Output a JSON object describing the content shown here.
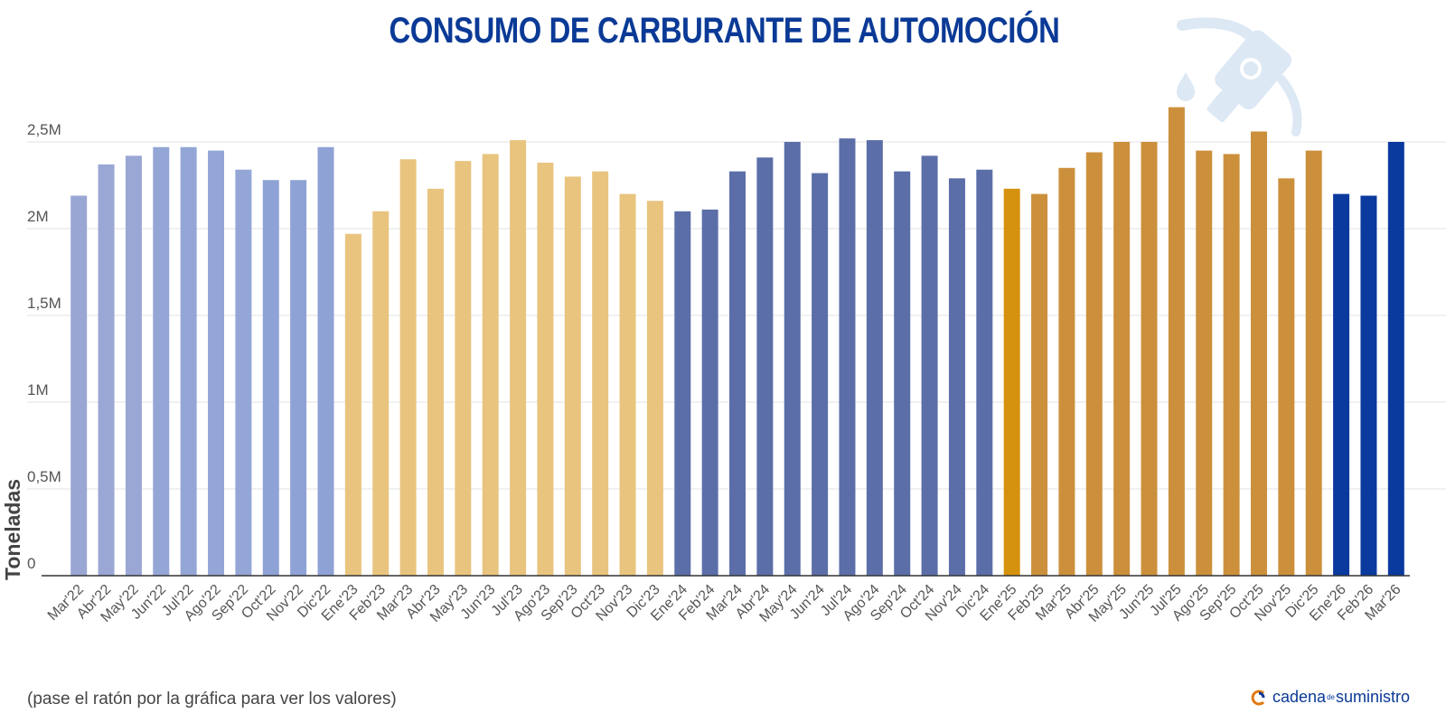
{
  "chart_data": {
    "type": "bar",
    "title": "CONSUMO DE CARBURANTE DE AUTOMOCIÓN",
    "ylabel": "Toneladas",
    "xlabel": "",
    "ylim": [
      0,
      2500000
    ],
    "yticks": [
      0,
      500000,
      1000000,
      1500000,
      2000000,
      2500000
    ],
    "ytick_labels": [
      "0",
      "0,5M",
      "1M",
      "1,5M",
      "2M",
      "2,5M"
    ],
    "grid": true,
    "legend": "none",
    "categories": [
      "Mar'22",
      "Abr'22",
      "May'22",
      "Jun'22",
      "Jul'22",
      "Ago'22",
      "Sep'22",
      "Oct'22",
      "Nov'22",
      "Dic'22",
      "Ene'23",
      "Feb'23",
      "Mar'23",
      "Abr'23",
      "May'23",
      "Jun'23",
      "Jul'23",
      "Ago'23",
      "Sep'23",
      "Oct'23",
      "Nov'23",
      "Dic'23",
      "Ene'24",
      "Feb'24",
      "Mar'24",
      "Abr'24",
      "May'24",
      "Jun'24",
      "Jul'24",
      "Ago'24",
      "Sep'24",
      "Oct'24",
      "Nov'24",
      "Dic'24",
      "Ene'25",
      "Feb'25",
      "Mar'25",
      "Abr'25",
      "May'25",
      "Jun'25",
      "Jul'25",
      "Ago'25",
      "Sep'25",
      "Oct'25",
      "Nov'25",
      "Dic'25",
      "Ene'26",
      "Feb'26",
      "Mar'26"
    ],
    "values": [
      2190000,
      2370000,
      2420000,
      2470000,
      2470000,
      2450000,
      2340000,
      2280000,
      2280000,
      2470000,
      1970000,
      2100000,
      2400000,
      2230000,
      2390000,
      2430000,
      2510000,
      2380000,
      2300000,
      2330000,
      2200000,
      2160000,
      2100000,
      2110000,
      2330000,
      2410000,
      2500000,
      2320000,
      2520000,
      2510000,
      2330000,
      2420000,
      2290000,
      2340000,
      2230000,
      2200000,
      2350000,
      2440000,
      2500000,
      2500000,
      2700000,
      2450000,
      2430000,
      2560000,
      2290000,
      2450000,
      2200000,
      2190000,
      2500000
    ],
    "bar_colors": [
      "#9aa7d4",
      "#9aa7d4",
      "#9aa7d4",
      "#94a6d6",
      "#94a6d6",
      "#94a6d6",
      "#94a6d6",
      "#8fa2d6",
      "#8fa2d6",
      "#8fa2d6",
      "#e8c47f",
      "#e8c47f",
      "#e8c47f",
      "#e8c47f",
      "#e8c47f",
      "#e8c47f",
      "#e8c47f",
      "#e8c47f",
      "#e8c47f",
      "#e8c47f",
      "#e8c47f",
      "#e8c47f",
      "#5b6ea8",
      "#5b6ea8",
      "#5b6ea8",
      "#5b6ea8",
      "#5b6ea8",
      "#5b6ea8",
      "#5b6ea8",
      "#5b6ea8",
      "#5b6ea8",
      "#5b6ea8",
      "#5b6ea8",
      "#5b6ea8",
      "#d4920e",
      "#cc903d",
      "#cc903d",
      "#cc903d",
      "#cc903d",
      "#cc903d",
      "#cc903d",
      "#cc903d",
      "#cc903d",
      "#cc903d",
      "#cc903d",
      "#cc903d",
      "#0b3a9e",
      "#0b3a9e",
      "#0b3a9e"
    ]
  },
  "footer": {
    "hover_note": "(pase el ratón por la gráfica para ver los valores)",
    "brand_part1": "cadena",
    "brand_part2": "de",
    "brand_part3": "suministro"
  },
  "colors": {
    "title": "#0b3a96",
    "axis": "#333333",
    "grid": "#e3e3e3",
    "tick_label": "#555555",
    "icon": "#dce8f4"
  },
  "icons": {
    "decoration": "fuel-pump-nozzle-icon",
    "brand_logo": "cadena-de-suministro-logo"
  }
}
